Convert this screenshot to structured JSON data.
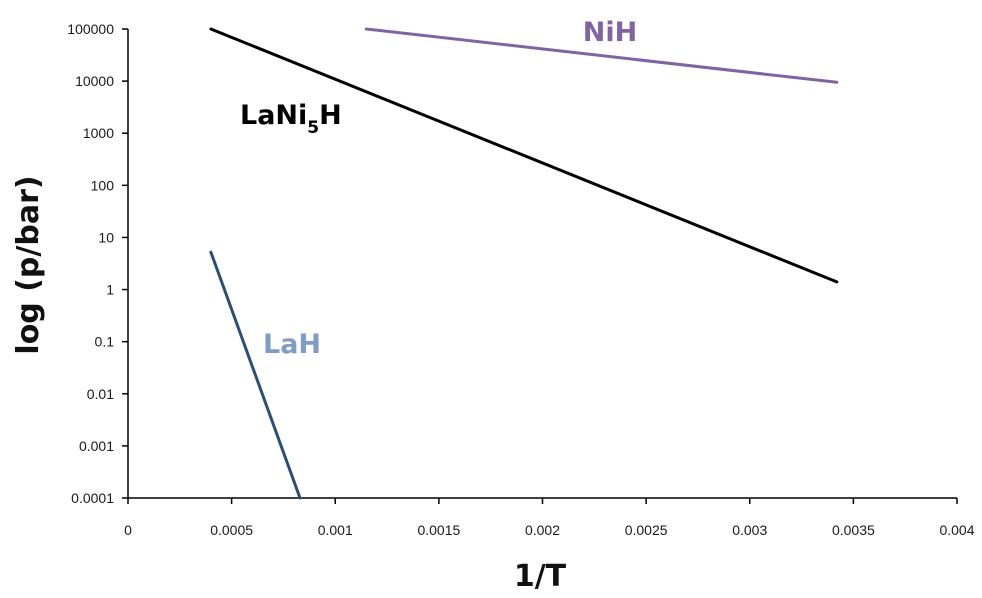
{
  "chart_data": {
    "type": "line",
    "title": "",
    "xlabel": "1/T",
    "ylabel": "log (p/bar)",
    "xlim": [
      0,
      0.004
    ],
    "ylim": [
      0.0001,
      100000
    ],
    "y_scale": "log",
    "grid": false,
    "x_ticks": [
      "0",
      "0.0005",
      "0.001",
      "0.0015",
      "0.002",
      "0.0025",
      "0.003",
      "0.0035",
      "0.004"
    ],
    "y_ticks": [
      "0.0001",
      "0.001",
      "0.01",
      "0.1",
      "1",
      "10",
      "100",
      "1000",
      "10000",
      "100000"
    ],
    "series": [
      {
        "key": "lani5h",
        "label_main": "LaNi",
        "label_sub": "5",
        "label_end": "H",
        "color": "#000000",
        "points": [
          [
            0.0004,
            100000
          ],
          [
            0.00342,
            1.4
          ]
        ]
      },
      {
        "key": "nih",
        "label": "NiH",
        "color": "#8064a2",
        "points": [
          [
            0.00115,
            100000
          ],
          [
            0.00342,
            9500
          ]
        ]
      },
      {
        "key": "lah",
        "label": "LaH",
        "color": "#2c4d75",
        "label_color": "#7f9cc4",
        "points": [
          [
            0.0004,
            5.2
          ],
          [
            0.00083,
            0.0001
          ]
        ]
      }
    ]
  }
}
